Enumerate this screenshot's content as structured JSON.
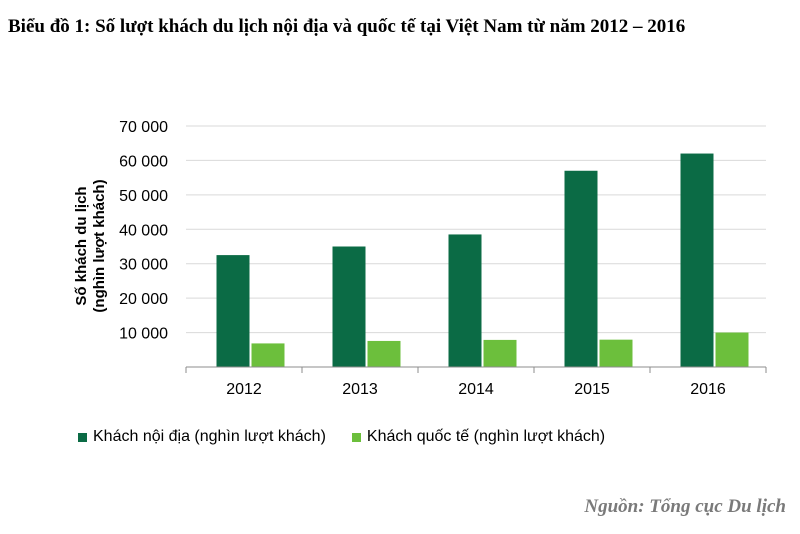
{
  "title": "Biểu đồ 1: Số lượt khách du lịch nội địa và quốc tế tại Việt Nam từ năm 2012 – 2016",
  "source": "Nguồn: Tổng cục Du lịch",
  "colors": {
    "domestic": "#0b6b45",
    "international": "#6cbf3c",
    "grid": "#d9d9d9",
    "axis": "#8c8c8c"
  },
  "chart_data": {
    "type": "bar",
    "ylabel_lines": [
      "Số khách du lịch",
      "(nghìn lượt khách)"
    ],
    "categories": [
      "2012",
      "2013",
      "2014",
      "2015",
      "2016"
    ],
    "ylim": [
      0,
      70000
    ],
    "yticks": [
      10000,
      20000,
      30000,
      40000,
      50000,
      60000,
      70000
    ],
    "ytick_labels": [
      "10 000",
      "20 000",
      "30 000",
      "40 000",
      "50 000",
      "60 000",
      "70 000"
    ],
    "grid": true,
    "legend_position": "bottom",
    "series": [
      {
        "name": "Khách nội địa (nghìn lượt khách)",
        "values": [
          32500,
          35000,
          38500,
          57000,
          62000
        ]
      },
      {
        "name": "Khách quốc tế (nghìn lượt khách)",
        "values": [
          6850,
          7570,
          7870,
          7940,
          10010
        ]
      }
    ]
  }
}
